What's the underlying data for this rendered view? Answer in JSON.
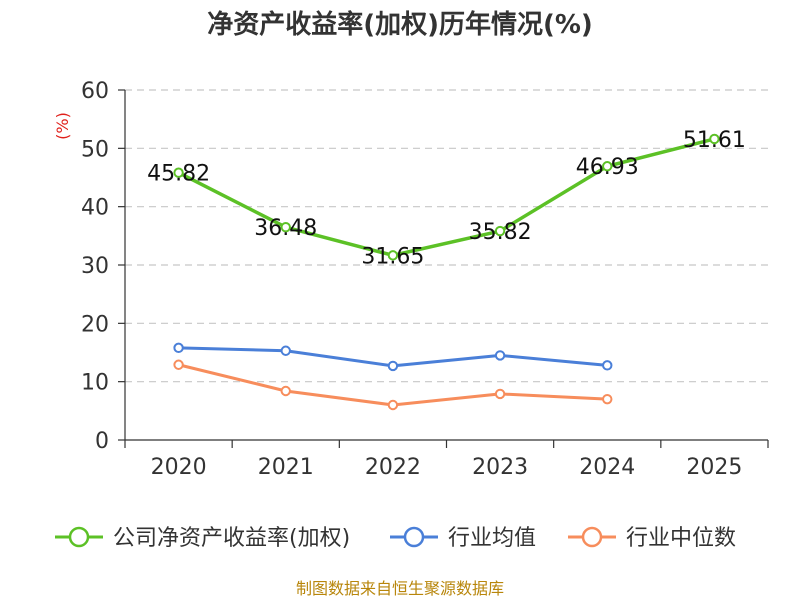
{
  "chart_data": {
    "type": "line",
    "title": "净资产收益率(加权)历年情况(%)",
    "ylabel": "(%)",
    "xlabel": "",
    "categories": [
      "2020",
      "2021",
      "2022",
      "2023",
      "2024",
      "2025"
    ],
    "ylim": [
      0,
      60
    ],
    "yticks": [
      0,
      10,
      20,
      30,
      40,
      50,
      60
    ],
    "grid": true,
    "legend_position": "bottom",
    "series": [
      {
        "name": "公司净资产收益率(加权)",
        "color": "#5cc126",
        "values": [
          45.82,
          36.48,
          31.65,
          35.82,
          46.93,
          51.61
        ],
        "labels": [
          "45.82",
          "36.48",
          "31.65",
          "35.82",
          "46.93",
          "51.61"
        ]
      },
      {
        "name": "行业均值",
        "color": "#4a7fd8",
        "values": [
          15.8,
          15.3,
          12.7,
          14.5,
          12.8,
          null
        ]
      },
      {
        "name": "行业中位数",
        "color": "#f78d5c",
        "values": [
          12.9,
          8.4,
          6.0,
          7.9,
          7.0,
          null
        ]
      }
    ],
    "source": "制图数据来自恒生聚源数据库"
  }
}
